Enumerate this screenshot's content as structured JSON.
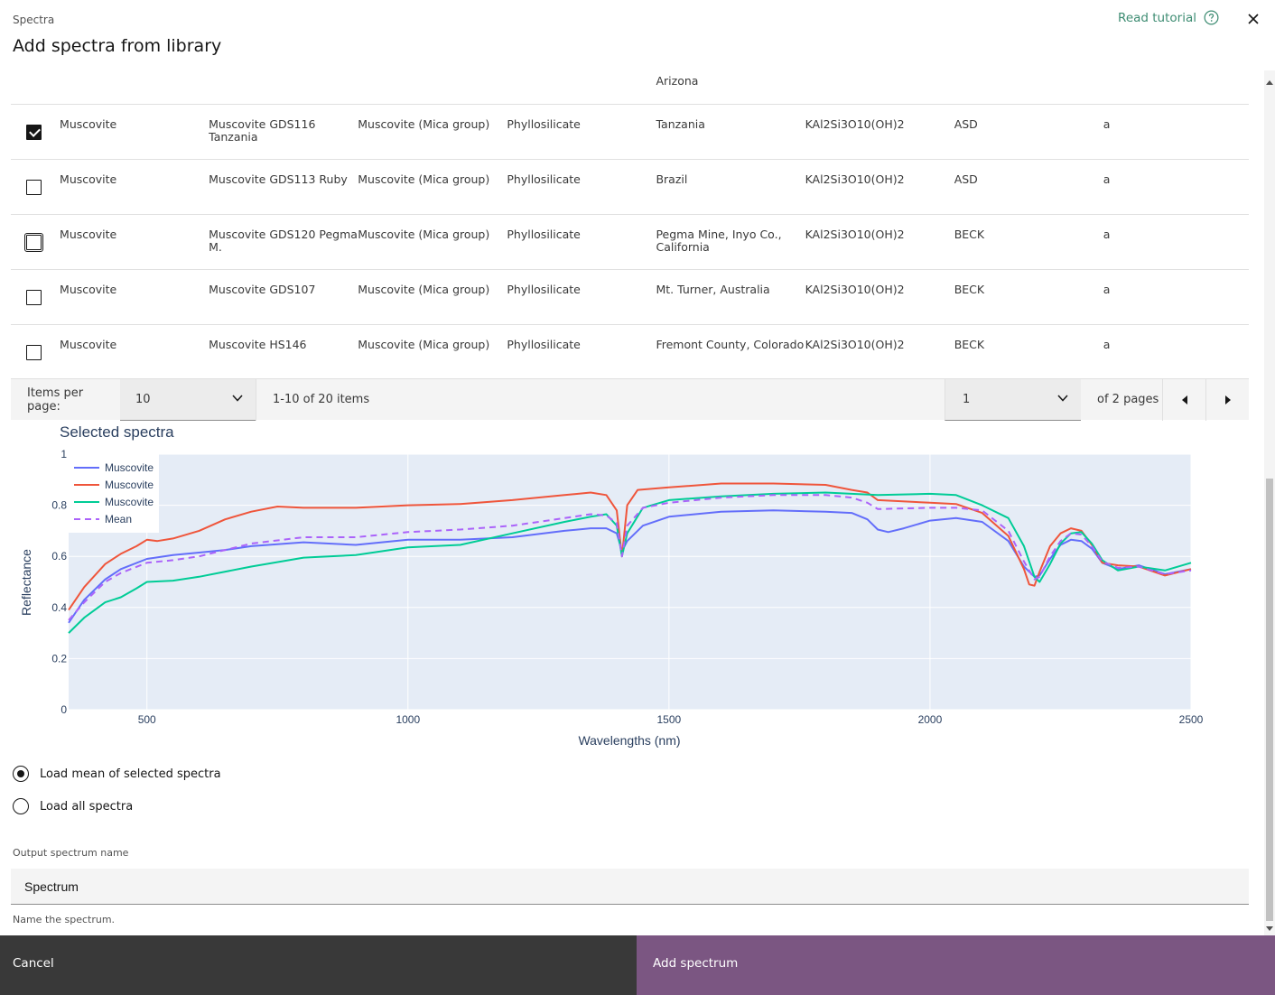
{
  "modal": {
    "label": "Spectra",
    "title": "Add spectra from library",
    "tutorial_link": "Read tutorial"
  },
  "table": {
    "partial_row_locality": "Arizona",
    "rows": [
      {
        "checked": true,
        "name": "Muscovite",
        "sample": "Muscovite GDS116 Tanzania",
        "group": "Muscovite (Mica group)",
        "class": "Phyllosilicate",
        "locality": "Tanzania",
        "formula": "KAl2Si3O10(OH)2",
        "instrument": "ASD",
        "grade": "a"
      },
      {
        "checked": false,
        "name": "Muscovite",
        "sample": "Muscovite GDS113 Ruby",
        "group": "Muscovite (Mica group)",
        "class": "Phyllosilicate",
        "locality": "Brazil",
        "formula": "KAl2Si3O10(OH)2",
        "instrument": "ASD",
        "grade": "a"
      },
      {
        "checked": false,
        "focused": true,
        "name": "Muscovite",
        "sample": "Muscovite GDS120 Pegma M.",
        "group": "Muscovite (Mica group)",
        "class": "Phyllosilicate",
        "locality": "Pegma Mine, Inyo Co., California",
        "formula": "KAl2Si3O10(OH)2",
        "instrument": "BECK",
        "grade": "a"
      },
      {
        "checked": false,
        "name": "Muscovite",
        "sample": "Muscovite GDS107",
        "group": "Muscovite (Mica group)",
        "class": "Phyllosilicate",
        "locality": "Mt. Turner, Australia",
        "formula": "KAl2Si3O10(OH)2",
        "instrument": "BECK",
        "grade": "a"
      },
      {
        "checked": false,
        "name": "Muscovite",
        "sample": "Muscovite HS146",
        "group": "Muscovite (Mica group)",
        "class": "Phyllosilicate",
        "locality": "Fremont County, Colorado",
        "formula": "KAl2Si3O10(OH)2",
        "instrument": "BECK",
        "grade": "a"
      }
    ]
  },
  "pagination": {
    "items_per_page_label": "Items per page:",
    "items_per_page": "10",
    "range_text": "1-10 of 20 items",
    "current_page": "1",
    "of_pages": "of 2 pages"
  },
  "chart_data": {
    "type": "line",
    "title": "Selected spectra",
    "xlabel": "Wavelengths (nm)",
    "ylabel": "Reflectance",
    "xlim": [
      350,
      2500
    ],
    "ylim": [
      0,
      1
    ],
    "xticks": [
      500,
      1000,
      1500,
      2000,
      2500
    ],
    "yticks": [
      0,
      0.2,
      0.4,
      0.6,
      0.8,
      1
    ],
    "plot_bg": "#e5ecf6",
    "legend_position": "top-left",
    "series": [
      {
        "name": "Muscovite",
        "color": "#636efa",
        "dash": false,
        "x": [
          350,
          380,
          420,
          450,
          500,
          550,
          600,
          650,
          700,
          800,
          900,
          1000,
          1100,
          1200,
          1300,
          1350,
          1380,
          1400,
          1410,
          1420,
          1450,
          1500,
          1600,
          1700,
          1800,
          1850,
          1880,
          1900,
          1920,
          1950,
          2000,
          2050,
          2100,
          2150,
          2180,
          2200,
          2210,
          2230,
          2250,
          2270,
          2290,
          2310,
          2330,
          2360,
          2400,
          2450,
          2500
        ],
        "y": [
          0.34,
          0.43,
          0.51,
          0.55,
          0.59,
          0.605,
          0.615,
          0.625,
          0.64,
          0.655,
          0.645,
          0.665,
          0.665,
          0.675,
          0.7,
          0.71,
          0.71,
          0.69,
          0.62,
          0.66,
          0.72,
          0.755,
          0.775,
          0.78,
          0.775,
          0.77,
          0.745,
          0.705,
          0.695,
          0.71,
          0.74,
          0.75,
          0.735,
          0.66,
          0.56,
          0.52,
          0.525,
          0.59,
          0.645,
          0.665,
          0.66,
          0.63,
          0.575,
          0.55,
          0.565,
          0.53,
          0.55
        ]
      },
      {
        "name": "Muscovite",
        "color": "#ef553b",
        "dash": false,
        "x": [
          350,
          380,
          420,
          450,
          480,
          500,
          520,
          550,
          600,
          650,
          700,
          750,
          800,
          900,
          1000,
          1100,
          1200,
          1300,
          1350,
          1380,
          1400,
          1410,
          1420,
          1440,
          1500,
          1600,
          1700,
          1800,
          1850,
          1880,
          1900,
          2000,
          2050,
          2100,
          2150,
          2180,
          2190,
          2200,
          2210,
          2230,
          2250,
          2270,
          2290,
          2310,
          2330,
          2360,
          2400,
          2450,
          2500
        ],
        "y": [
          0.39,
          0.48,
          0.57,
          0.61,
          0.64,
          0.665,
          0.66,
          0.67,
          0.7,
          0.745,
          0.775,
          0.795,
          0.79,
          0.79,
          0.8,
          0.805,
          0.82,
          0.84,
          0.85,
          0.84,
          0.78,
          0.6,
          0.8,
          0.86,
          0.87,
          0.885,
          0.885,
          0.88,
          0.86,
          0.85,
          0.82,
          0.81,
          0.805,
          0.77,
          0.68,
          0.55,
          0.49,
          0.485,
          0.54,
          0.64,
          0.69,
          0.71,
          0.7,
          0.645,
          0.575,
          0.565,
          0.56,
          0.525,
          0.55
        ]
      },
      {
        "name": "Muscovite",
        "color": "#00cc96",
        "dash": false,
        "x": [
          350,
          380,
          420,
          450,
          480,
          500,
          550,
          600,
          700,
          800,
          900,
          1000,
          1100,
          1200,
          1300,
          1350,
          1380,
          1400,
          1410,
          1420,
          1450,
          1500,
          1600,
          1700,
          1800,
          1900,
          2000,
          2050,
          2100,
          2150,
          2180,
          2200,
          2210,
          2230,
          2250,
          2270,
          2290,
          2310,
          2330,
          2360,
          2400,
          2450,
          2500
        ],
        "y": [
          0.3,
          0.36,
          0.42,
          0.44,
          0.475,
          0.5,
          0.505,
          0.52,
          0.56,
          0.595,
          0.605,
          0.635,
          0.645,
          0.69,
          0.735,
          0.755,
          0.765,
          0.72,
          0.6,
          0.69,
          0.79,
          0.82,
          0.835,
          0.845,
          0.85,
          0.84,
          0.845,
          0.84,
          0.8,
          0.75,
          0.64,
          0.52,
          0.5,
          0.57,
          0.65,
          0.69,
          0.695,
          0.65,
          0.585,
          0.545,
          0.56,
          0.545,
          0.575
        ]
      },
      {
        "name": "Mean",
        "color": "#ab63fa",
        "dash": true,
        "x": [
          350,
          380,
          420,
          450,
          500,
          550,
          600,
          650,
          700,
          800,
          900,
          1000,
          1100,
          1200,
          1300,
          1350,
          1380,
          1400,
          1410,
          1420,
          1450,
          1500,
          1600,
          1700,
          1800,
          1850,
          1880,
          1900,
          2000,
          2050,
          2100,
          2150,
          2180,
          2200,
          2210,
          2230,
          2250,
          2270,
          2290,
          2310,
          2330,
          2360,
          2400,
          2450,
          2500
        ],
        "y": [
          0.35,
          0.42,
          0.5,
          0.535,
          0.575,
          0.585,
          0.6,
          0.625,
          0.65,
          0.675,
          0.675,
          0.695,
          0.705,
          0.72,
          0.75,
          0.765,
          0.76,
          0.73,
          0.6,
          0.72,
          0.79,
          0.81,
          0.83,
          0.84,
          0.84,
          0.83,
          0.81,
          0.785,
          0.79,
          0.79,
          0.78,
          0.7,
          0.58,
          0.51,
          0.52,
          0.6,
          0.66,
          0.69,
          0.685,
          0.64,
          0.58,
          0.555,
          0.56,
          0.53,
          0.545
        ]
      }
    ]
  },
  "load_options": {
    "mean_label": "Load mean of selected spectra",
    "all_label": "Load all spectra",
    "selected": "mean"
  },
  "output": {
    "label": "Output spectrum name",
    "value": "Spectrum",
    "helper": "Name the spectrum."
  },
  "footer": {
    "cancel_label": "Cancel",
    "add_label": "Add spectrum"
  }
}
